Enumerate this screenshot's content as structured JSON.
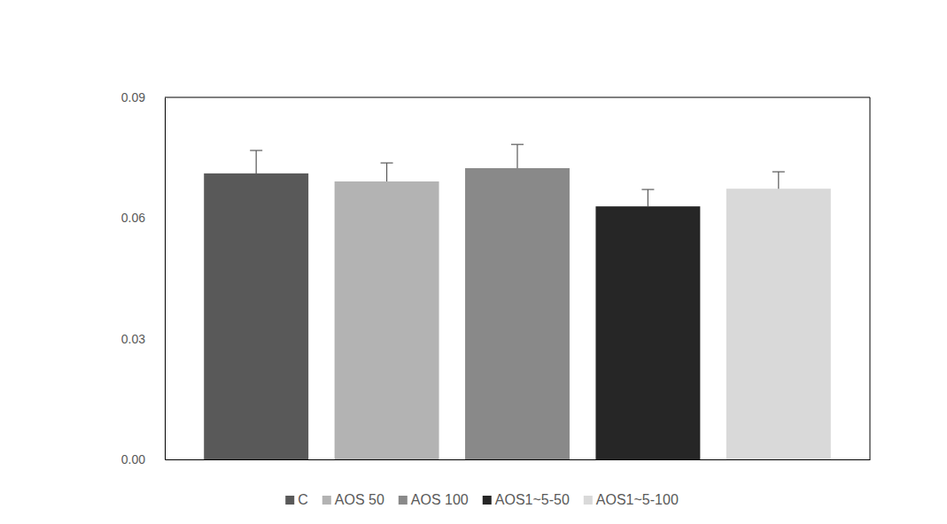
{
  "chart_data": {
    "type": "bar",
    "categories": [
      "C",
      "AOS 50",
      "AOS 100",
      "AOS1~5-50",
      "AOS1~5-100"
    ],
    "values": [
      0.0711,
      0.0691,
      0.0724,
      0.0629,
      0.0673
    ],
    "errors": [
      0.0057,
      0.0046,
      0.0059,
      0.0042,
      0.0042
    ],
    "colors": [
      "#595959",
      "#b3b3b3",
      "#898989",
      "#262626",
      "#d9d9d9"
    ],
    "ylim": [
      0,
      0.09
    ],
    "yticks": [
      {
        "value": 0,
        "label": "0.00"
      },
      0.03,
      0.06,
      0.09
    ],
    "grid": false,
    "legend": "bottom",
    "tick_labels": "y"
  }
}
